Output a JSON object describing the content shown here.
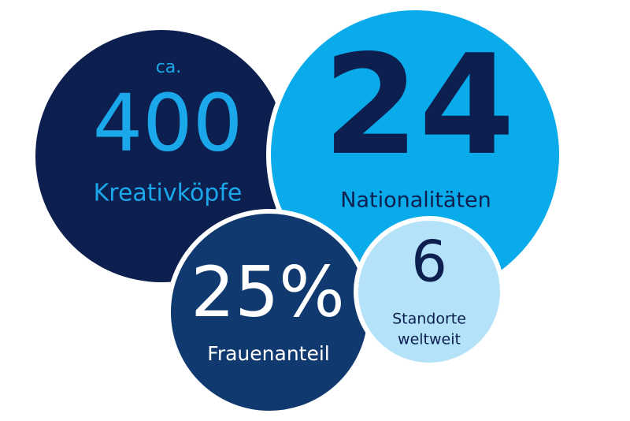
{
  "bubbles": [
    {
      "prefix": "ca.",
      "number": "400",
      "label": "Kreativköpfe"
    },
    {
      "number": "24",
      "label": "Nationalitäten"
    },
    {
      "number": "25%",
      "label": "Frauenanteil"
    },
    {
      "number": "6",
      "label_lines": [
        "Standorte",
        "weltweit"
      ]
    }
  ]
}
